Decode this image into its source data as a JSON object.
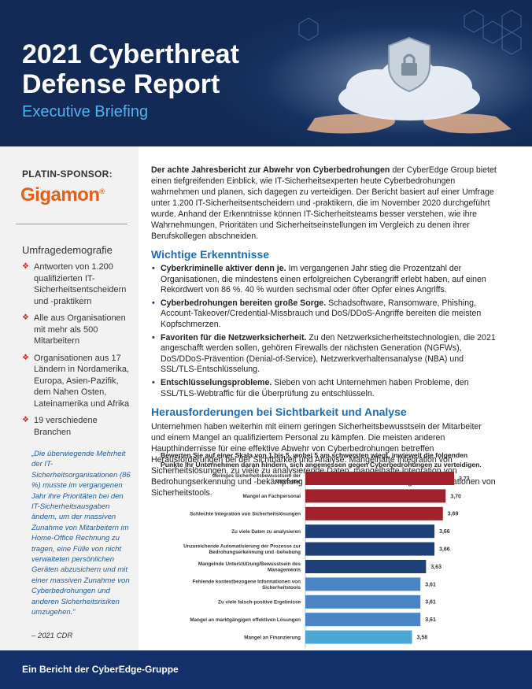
{
  "header": {
    "title": "2021 Cyberthreat Defense Report",
    "subtitle": "Executive Briefing"
  },
  "sidebar": {
    "sponsor_label": "PLATIN-SPONSOR:",
    "sponsor_name": "Gigamon",
    "sponsor_mark": "®",
    "demographics_title": "Umfragedemografie",
    "demographics": [
      "Antworten von 1.200 qualifizierten IT-Sicherheitsentscheidern und -praktikern",
      "Alle aus Organisationen mit mehr als 500 Mitarbeitern",
      "Organisationen aus 17 Ländern in Nordamerika, Europa, Asien-Pazifik, dem Nahen Osten, Lateinamerika und Afrika",
      "19 verschiedene Branchen"
    ],
    "quote": "„Die überwiegende Mehrheit der IT-Sicherheitsorganisationen (86 %) musste im vergangenen Jahr ihre Prioritäten bei den IT-Sicherheitsausgaben ändern, um der massiven Zunahme von Mitarbeitern im Home-Office Rechnung zu tragen, eine Fülle von nicht verwalteten persönlichen Geräten abzusichern und mit einer massiven Zunahme von Cyberbedrohungen und anderen Sicherheitsrisiken umzugehen.“",
    "quote_source": "– 2021 CDR"
  },
  "main": {
    "intro_bold": "Der achte Jahresbericht zur Abwehr von Cyberbedrohungen",
    "intro_rest": " der CyberEdge Group bietet einen tiefgreifenden Einblick, wie IT-Sicherheitsexperten heute Cyberbedrohungen wahrnehmen und planen, sich dagegen zu verteidigen. Der Bericht basiert auf einer Umfrage unter 1.200 IT-Sicherheitsentscheidern und -praktikern, die im November 2020 durchgeführt wurde. Anhand der Erkenntnisse können IT-Sicherheitsteams besser verstehen, wie ihre Wahrnehmungen, Prioritäten und Sicherheitseinstellungen im Vergleich zu denen ihrer Berufskollegen abschneiden.",
    "findings_title": "Wichtige Erkenntnisse",
    "findings": [
      {
        "lead": "Cyberkriminelle aktiver denn je.",
        "text": " Im vergangenen Jahr stieg die Prozentzahl der Organisationen, die mindestens einen erfolgreichen Cyberangriff erlebt haben, auf einen Rekordwert von 86 %. 40 % wurden sechsmal oder öfter Opfer eines Angriffs."
      },
      {
        "lead": "Cyberbedrohungen bereiten große Sorge.",
        "text": " Schadsoftware, Ransomware, Phishing, Account-Takeover/Credential-Missbrauch und DoS/DDoS-Angriffe bereiten die meisten Kopfschmerzen."
      },
      {
        "lead": "Favoriten für die Netzwerksicherheit.",
        "text": " Zu den Netzwerksicherheitstechnologien, die 2021 angeschafft werden sollen, gehören Firewalls der nächsten Generation (NGFWs), DoS/DDoS-Prävention (Denial-of-Service), Netzwerkverhaltensanalyse (NBA) und SSL/TLS-Entschlüsselung."
      },
      {
        "lead": "Entschlüsselungsprobleme.",
        "text": " Sieben von acht Unternehmen haben Probleme, den SSL/TLS-Webtraffic für die Überprüfung zu entschlüsseln."
      }
    ],
    "challenges_title": "Herausforderungen bei Sichtbarkeit und Analyse",
    "challenges_text": "Unternehmen haben weiterhin mit einem geringen Sicherheitsbewusstsein der Mitarbeiter und einem Mangel an qualifiziertem Personal zu kämpfen. Die meisten anderen Haupthindernisse für eine effektive Abwehr von Cyberbedrohungen betreffen Herausforderungen bei der Sichtbarkeit und Analyse: Mangelhafte Integration von Sicherheitslösungen, zu viele zu analysierende Daten, mangelhafte Integration von Bedrohungserkennung und -bekämpfung sowie fehlende kontextbezogene Informationen von Sicherheitstools."
  },
  "chart_data": {
    "type": "bar",
    "orientation": "horizontal",
    "title": "Bewerten Sie auf einer Skala von 1 bis 5, wobei 5 am schwersten wiegt, inwieweit die folgenden Punkte Ihr Unternehmen daran hindern, sich angemessen gegen Cyberbedrohungen zu verteidigen.",
    "categories": [
      "Geringes Sicherheitsbewusstsein der Mitarbeiter",
      "Mangel an Fachpersonal",
      "Schlechte Integration von Sicherheitslösungen",
      "Zu viele Daten zu analysieren",
      "Unzureichende Automatisierung der Prozesse zur Bedrohungserkennung und -behebung",
      "Mangelnde Unterstützung/Bewusstsein des Managements",
      "Fehlende kontextbezogene Informationen von Sicherheitstools",
      "Zu viele falsch-positive Ergebnisse",
      "Mangel an marktgängigen effektiven Lösungen",
      "Mangel an Finanzierung"
    ],
    "labels": [
      "3,73",
      "3,70",
      "3,69",
      "3,66",
      "3,66",
      "3,63",
      "3,61",
      "3,61",
      "3,61",
      "3,58"
    ],
    "values": [
      3.73,
      3.7,
      3.69,
      3.66,
      3.66,
      3.63,
      3.61,
      3.61,
      3.61,
      3.58
    ],
    "xlim": [
      3.2,
      3.8
    ],
    "colors": [
      "#a0212b",
      "#a0212b",
      "#a0212b",
      "#1e3f78",
      "#1e3f78",
      "#1e3f78",
      "#4a86c5",
      "#4a86c5",
      "#4a86c5",
      "#4aa8d8"
    ],
    "grid": false
  },
  "footer": {
    "text": "Ein Bericht der CyberEdge-Gruppe"
  }
}
